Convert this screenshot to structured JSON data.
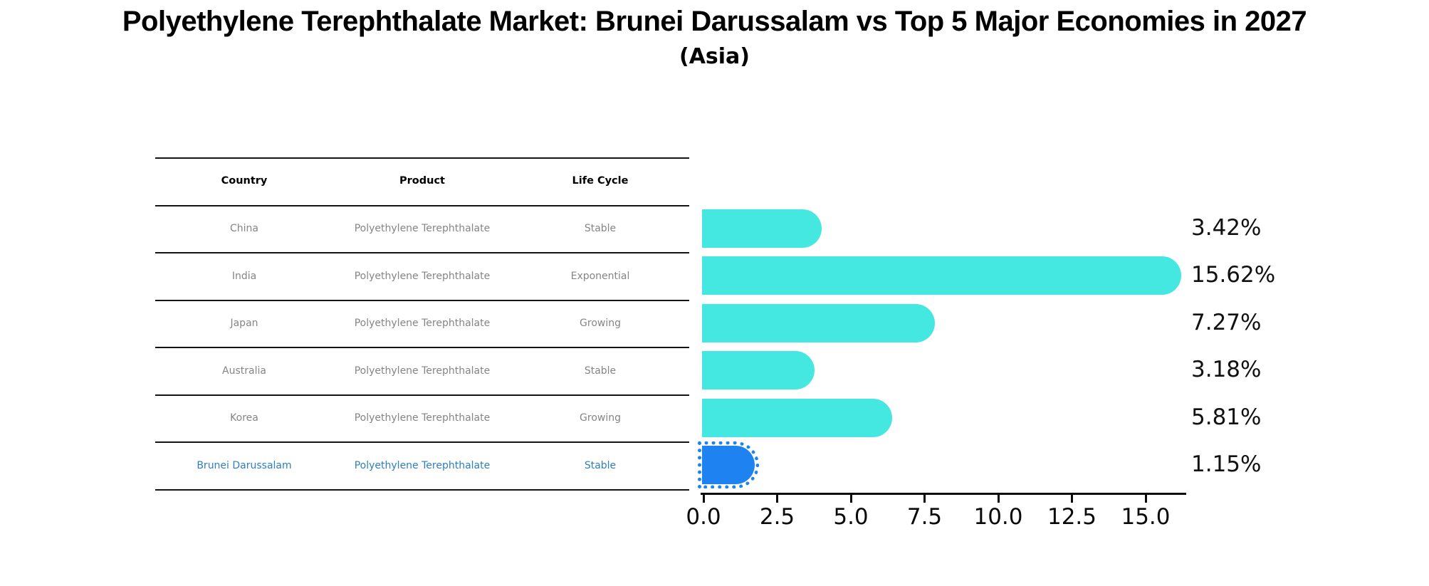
{
  "title": "Polyethylene Terephthalate Market: Brunei Darussalam vs Top 5 Major Economies in 2027",
  "subtitle": "(Asia)",
  "table": {
    "headers": [
      "Country",
      "Product",
      "Life Cycle"
    ],
    "rows": [
      {
        "country": "China",
        "product": "Polyethylene Terephthalate",
        "life_cycle": "Stable",
        "highlight": false
      },
      {
        "country": "India",
        "product": "Polyethylene Terephthalate",
        "life_cycle": "Exponential",
        "highlight": false
      },
      {
        "country": "Japan",
        "product": "Polyethylene Terephthalate",
        "life_cycle": "Growing",
        "highlight": false
      },
      {
        "country": "Australia",
        "product": "Polyethylene Terephthalate",
        "life_cycle": "Stable",
        "highlight": false
      },
      {
        "country": "Korea",
        "product": "Polyethylene Terephthalate",
        "life_cycle": "Growing",
        "highlight": false
      },
      {
        "country": "Brunei Darussalam",
        "product": "Polyethylene Terephthalate",
        "life_cycle": "Stable",
        "highlight": true
      }
    ]
  },
  "chart_data": {
    "type": "bar",
    "orientation": "horizontal",
    "title": "Polyethylene Terephthalate Market: Brunei Darussalam vs Top 5 Major Economies in 2027",
    "subtitle": "(Asia)",
    "categories": [
      "China",
      "India",
      "Japan",
      "Australia",
      "Korea",
      "Brunei Darussalam"
    ],
    "values": [
      3.42,
      15.62,
      7.27,
      3.18,
      5.81,
      1.15
    ],
    "value_labels": [
      "3.42%",
      "15.62%",
      "7.27%",
      "3.18%",
      "5.81%",
      "1.15%"
    ],
    "x_tick_labels": [
      "0.0",
      "2.5",
      "5.0",
      "7.5",
      "10.0",
      "12.5",
      "15.0"
    ],
    "x_tick_values": [
      0,
      2.5,
      5,
      7.5,
      10,
      12.5,
      15
    ],
    "xlim": [
      0,
      16.4
    ],
    "grid": false,
    "legend": false,
    "bar_color": "#45E8E1",
    "highlight_color": "#1E82F0",
    "highlight_index": 5,
    "highlight_text_color": "#2e7fbe"
  }
}
